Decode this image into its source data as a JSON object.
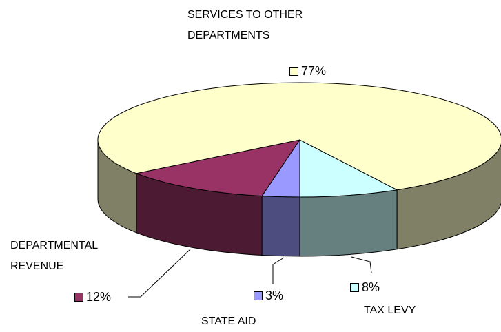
{
  "chart_data": {
    "type": "pie",
    "categories": [
      "TAX LEVY",
      "STATE AID",
      "DEPARTMENTAL REVENUE",
      "SERVICES TO OTHER DEPARTMENTS"
    ],
    "values": [
      8,
      3,
      12,
      77
    ],
    "value_labels": [
      "8%",
      "3%",
      "12%",
      "77%"
    ],
    "colors": [
      "#ccffff",
      "#9999ff",
      "#993366",
      "#ffffcc"
    ],
    "three_d": true
  }
}
